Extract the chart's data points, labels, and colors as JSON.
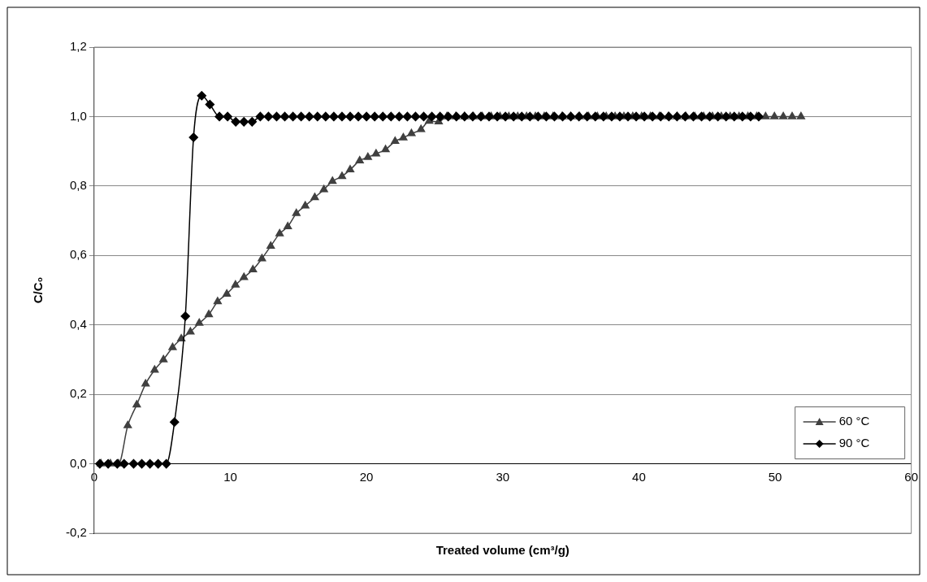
{
  "chart_data": {
    "type": "line",
    "xlabel": "Treated volume (cm³/g)",
    "ylabel": "C/C₀",
    "xlim": [
      0,
      60
    ],
    "xticks": [
      0,
      10,
      20,
      30,
      40,
      50,
      60
    ],
    "ylim": [
      -0.2,
      1.2
    ],
    "yticks": [
      {
        "value": -0.2,
        "label": "-0,2"
      },
      {
        "value": 0,
        "label": "0,0"
      },
      {
        "value": 0.2,
        "label": "0,2"
      },
      {
        "value": 0.4,
        "label": "0,4"
      },
      {
        "value": 0.6,
        "label": "0,6"
      },
      {
        "value": 0.8,
        "label": "0,8"
      },
      {
        "value": 1.0,
        "label": "1,0"
      },
      {
        "value": 1.2,
        "label": "1,2"
      }
    ],
    "grid": "y",
    "legend": "bottom right",
    "line_style": "solid",
    "series": [
      {
        "name": "60 °C",
        "color": "#404040",
        "marker": "triangle",
        "x": [
          0.5,
          1.2,
          1.8,
          2.47,
          3.13,
          3.78,
          4.44,
          5.09,
          5.76,
          6.4,
          7.07,
          7.72,
          8.42,
          9.07,
          9.74,
          10.38,
          11.0,
          11.66,
          12.32,
          12.97,
          13.62,
          14.22,
          14.85,
          15.5,
          16.2,
          16.87,
          17.5,
          18.2,
          18.8,
          19.5,
          20.1,
          20.7,
          21.4,
          22.1,
          22.7,
          23.3,
          24.0,
          24.6,
          25.3,
          25.9,
          26.55,
          27.2,
          27.85,
          28.5,
          29.15,
          29.8,
          30.45,
          31.1,
          31.75,
          32.4,
          33.05,
          33.7,
          34.35,
          35.0,
          35.65,
          36.3,
          36.95,
          37.6,
          38.25,
          38.9,
          39.55,
          40.2,
          40.85,
          41.5,
          42.15,
          42.8,
          43.45,
          44.1,
          44.75,
          45.4,
          46.05,
          46.7,
          47.35,
          48.0,
          48.65,
          49.3,
          49.95,
          50.6,
          51.25,
          51.9
        ],
        "values": [
          0,
          0,
          0,
          0.11,
          0.17,
          0.23,
          0.27,
          0.3,
          0.335,
          0.36,
          0.38,
          0.405,
          0.43,
          0.467,
          0.489,
          0.515,
          0.537,
          0.559,
          0.591,
          0.627,
          0.663,
          0.683,
          0.721,
          0.743,
          0.767,
          0.79,
          0.814,
          0.828,
          0.847,
          0.873,
          0.883,
          0.893,
          0.905,
          0.929,
          0.939,
          0.951,
          0.963,
          0.987,
          0.985,
          1,
          1,
          1,
          1,
          1,
          1,
          1,
          1,
          1,
          1,
          1,
          1,
          1,
          1,
          1,
          1,
          1,
          1,
          1,
          1,
          1,
          1,
          1,
          1,
          1,
          1,
          1,
          1,
          1,
          1,
          1,
          1,
          1,
          1,
          1,
          1,
          1,
          1,
          1,
          1,
          1
        ]
      },
      {
        "name": "90 °C",
        "color": "#000000",
        "marker": "diamond",
        "x": [
          0.42,
          1.03,
          1.7,
          2.2,
          2.9,
          3.5,
          4.1,
          4.7,
          5.3,
          5.9,
          6.7,
          7.3,
          7.9,
          8.5,
          9.2,
          9.8,
          10.4,
          11.0,
          11.6,
          12.2,
          12.8,
          13.4,
          14.0,
          14.6,
          15.2,
          15.8,
          16.4,
          17.0,
          17.6,
          18.2,
          18.8,
          19.4,
          20.0,
          20.6,
          21.2,
          21.8,
          22.4,
          23.0,
          23.6,
          24.2,
          24.8,
          25.4,
          26.0,
          26.6,
          27.2,
          27.8,
          28.4,
          29.0,
          29.6,
          30.2,
          30.8,
          31.4,
          32.0,
          32.6,
          33.2,
          33.8,
          34.4,
          35.0,
          35.6,
          36.2,
          36.8,
          37.4,
          38.0,
          38.6,
          39.2,
          39.8,
          40.4,
          41.0,
          41.6,
          42.2,
          42.8,
          43.4,
          44.0,
          44.6,
          45.2,
          45.8,
          46.4,
          47.0,
          47.6,
          48.2,
          48.8
        ],
        "values": [
          0,
          0,
          0,
          0,
          0,
          0,
          0,
          0,
          0,
          0.12,
          0.425,
          0.94,
          1.06,
          1.035,
          1,
          1,
          0.985,
          0.985,
          0.985,
          1,
          1,
          1,
          1,
          1,
          1,
          1,
          1,
          1,
          1,
          1,
          1,
          1,
          1,
          1,
          1,
          1,
          1,
          1,
          1,
          1,
          1,
          1,
          1,
          1,
          1,
          1,
          1,
          1,
          1,
          1,
          1,
          1,
          1,
          1,
          1,
          1,
          1,
          1,
          1,
          1,
          1,
          1,
          1,
          1,
          1,
          1,
          1,
          1,
          1,
          1,
          1,
          1,
          1,
          1,
          1,
          1,
          1,
          1,
          1,
          1,
          1
        ]
      }
    ]
  }
}
